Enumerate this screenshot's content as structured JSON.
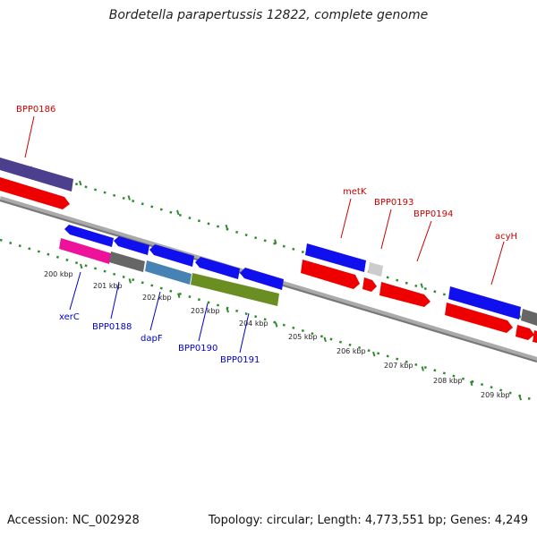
{
  "header": {
    "title": "Bordetella parapertussis 12822, complete genome"
  },
  "footer": {
    "accession": "Accession: NC_002928",
    "summary": "Topology: circular; Length: 4,773,551 bp; Genes: 4,249"
  },
  "colors": {
    "forward_label": "#cc0000",
    "reverse_label": "#0000cc",
    "tick": "#2e8b2e",
    "backbone": "#808080"
  },
  "forward_labels": [
    "BPP0186",
    "metK",
    "BPP0193",
    "BPP0194",
    "acyH"
  ],
  "reverse_labels": [
    "xerC",
    "BPP0188",
    "dapF",
    "BPP0190",
    "BPP0191"
  ],
  "scale_labels": [
    "200 kbp",
    "201 kbp",
    "202 kbp",
    "203 kbp",
    "204 kbp",
    "205 kbp",
    "206 kbp",
    "207 kbp",
    "208 kbp",
    "209 kbp"
  ]
}
